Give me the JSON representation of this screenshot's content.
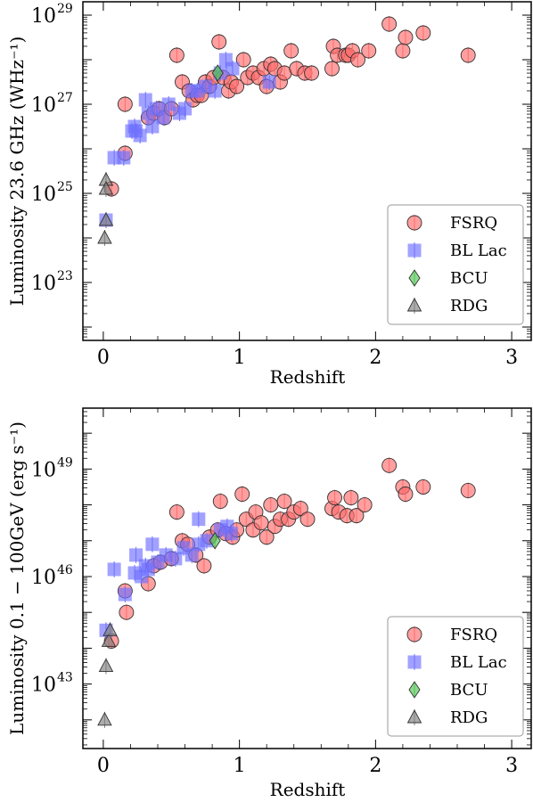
{
  "figure": {
    "legend_labels": [
      "FSRQ",
      "BL Lac",
      "BCU",
      "RDG"
    ],
    "colors": {
      "FSRQ": "#ff6b6b",
      "BL Lac": "#6f70ff",
      "BCU": "#52c452",
      "RDG": "#7f7f7f"
    }
  },
  "chart_data": [
    {
      "type": "scatter",
      "xlabel": "Redshift",
      "ylabel": "Luminosity 23.6 GHz (WHz⁻¹)",
      "xlim": [
        -0.15,
        3.15
      ],
      "ylim_log10": [
        21.7,
        29.3
      ],
      "x_ticks": [
        {
          "value": 0,
          "label": "0"
        },
        {
          "value": 1,
          "label": "1"
        },
        {
          "value": 2,
          "label": "2"
        },
        {
          "value": 3,
          "label": "3"
        }
      ],
      "y_ticks": [
        {
          "exp": 23,
          "label": "10",
          "sup": "23"
        },
        {
          "exp": 25,
          "label": "10",
          "sup": "25"
        },
        {
          "exp": 27,
          "label": "10",
          "sup": "27"
        },
        {
          "exp": 29,
          "label": "10",
          "sup": "29"
        }
      ],
      "legend_position": "lower-right",
      "scale_y": "log",
      "series": [
        {
          "name": "FSRQ",
          "marker": "circle",
          "points": [
            [
              0.06,
              25.1
            ],
            [
              0.16,
              27.0
            ],
            [
              0.16,
              25.9
            ],
            [
              0.33,
              26.7
            ],
            [
              0.37,
              26.8
            ],
            [
              0.41,
              26.9
            ],
            [
              0.45,
              26.7
            ],
            [
              0.5,
              26.9
            ],
            [
              0.54,
              28.1
            ],
            [
              0.58,
              27.5
            ],
            [
              0.63,
              27.3
            ],
            [
              0.66,
              27.1
            ],
            [
              0.69,
              27.2
            ],
            [
              0.72,
              27.2
            ],
            [
              0.75,
              27.5
            ],
            [
              0.78,
              27.4
            ],
            [
              0.81,
              27.6
            ],
            [
              0.85,
              28.4
            ],
            [
              0.88,
              27.6
            ],
            [
              0.92,
              27.3
            ],
            [
              0.94,
              27.5
            ],
            [
              0.98,
              27.4
            ],
            [
              1.03,
              28.0
            ],
            [
              1.06,
              27.6
            ],
            [
              1.1,
              27.7
            ],
            [
              1.14,
              27.6
            ],
            [
              1.18,
              27.8
            ],
            [
              1.2,
              27.4
            ],
            [
              1.23,
              27.9
            ],
            [
              1.26,
              27.8
            ],
            [
              1.3,
              27.5
            ],
            [
              1.33,
              27.7
            ],
            [
              1.38,
              28.2
            ],
            [
              1.42,
              27.8
            ],
            [
              1.48,
              27.7
            ],
            [
              1.53,
              27.7
            ],
            [
              1.68,
              27.8
            ],
            [
              1.69,
              28.3
            ],
            [
              1.72,
              28.1
            ],
            [
              1.78,
              28.1
            ],
            [
              1.8,
              28.1
            ],
            [
              1.83,
              28.2
            ],
            [
              1.87,
              28.0
            ],
            [
              1.95,
              28.2
            ],
            [
              2.1,
              28.8
            ],
            [
              2.2,
              28.2
            ],
            [
              2.22,
              28.5
            ],
            [
              2.35,
              28.6
            ],
            [
              2.68,
              28.1
            ]
          ]
        },
        {
          "name": "BL Lac",
          "marker": "square",
          "points": [
            [
              0.02,
              24.4
            ],
            [
              0.08,
              25.8
            ],
            [
              0.15,
              25.8
            ],
            [
              0.21,
              26.4
            ],
            [
              0.23,
              26.5
            ],
            [
              0.24,
              26.4
            ],
            [
              0.27,
              26.3
            ],
            [
              0.31,
              27.1
            ],
            [
              0.33,
              26.8
            ],
            [
              0.36,
              26.5
            ],
            [
              0.39,
              26.9
            ],
            [
              0.44,
              26.7
            ],
            [
              0.48,
              27.0
            ],
            [
              0.56,
              26.8
            ],
            [
              0.6,
              26.9
            ],
            [
              0.65,
              27.3
            ],
            [
              0.69,
              27.3
            ],
            [
              0.75,
              27.4
            ],
            [
              0.82,
              27.3
            ],
            [
              0.86,
              27.7
            ],
            [
              0.9,
              28.0
            ],
            [
              0.95,
              27.8
            ],
            [
              1.22,
              27.5
            ]
          ]
        },
        {
          "name": "BCU",
          "marker": "diamond",
          "points": [
            [
              0.84,
              27.7
            ]
          ]
        },
        {
          "name": "RDG",
          "marker": "triangle",
          "points": [
            [
              0.01,
              24.0
            ],
            [
              0.02,
              24.4
            ],
            [
              0.02,
              25.3
            ],
            [
              0.02,
              25.1
            ]
          ]
        }
      ]
    },
    {
      "type": "scatter",
      "xlabel": "Redshift",
      "ylabel": "Luminosity 0.1 − 100GeV (erg s⁻¹)",
      "xlim": [
        -0.15,
        3.15
      ],
      "ylim_log10": [
        41.2,
        50.7
      ],
      "x_ticks": [
        {
          "value": 0,
          "label": "0"
        },
        {
          "value": 1,
          "label": "1"
        },
        {
          "value": 2,
          "label": "2"
        },
        {
          "value": 3,
          "label": "3"
        }
      ],
      "y_ticks": [
        {
          "exp": 43,
          "label": "10",
          "sup": "43"
        },
        {
          "exp": 46,
          "label": "10",
          "sup": "46"
        },
        {
          "exp": 49,
          "label": "10",
          "sup": "49"
        }
      ],
      "legend_position": "lower-right",
      "scale_y": "log",
      "series": [
        {
          "name": "FSRQ",
          "marker": "circle",
          "points": [
            [
              0.06,
              44.2
            ],
            [
              0.16,
              45.6
            ],
            [
              0.17,
              45.0
            ],
            [
              0.33,
              45.8
            ],
            [
              0.37,
              46.3
            ],
            [
              0.42,
              46.4
            ],
            [
              0.5,
              46.5
            ],
            [
              0.54,
              47.8
            ],
            [
              0.58,
              47.0
            ],
            [
              0.62,
              46.9
            ],
            [
              0.68,
              46.6
            ],
            [
              0.74,
              46.3
            ],
            [
              0.78,
              47.1
            ],
            [
              0.84,
              47.3
            ],
            [
              0.86,
              48.1
            ],
            [
              0.9,
              47.2
            ],
            [
              0.95,
              47.1
            ],
            [
              0.98,
              47.3
            ],
            [
              1.02,
              48.3
            ],
            [
              1.05,
              47.6
            ],
            [
              1.1,
              47.3
            ],
            [
              1.12,
              47.8
            ],
            [
              1.16,
              47.5
            ],
            [
              1.2,
              47.1
            ],
            [
              1.23,
              48.0
            ],
            [
              1.26,
              47.4
            ],
            [
              1.3,
              47.6
            ],
            [
              1.33,
              48.1
            ],
            [
              1.36,
              47.6
            ],
            [
              1.4,
              47.8
            ],
            [
              1.45,
              47.9
            ],
            [
              1.5,
              47.6
            ],
            [
              1.68,
              47.9
            ],
            [
              1.7,
              48.2
            ],
            [
              1.73,
              47.8
            ],
            [
              1.79,
              47.7
            ],
            [
              1.82,
              48.2
            ],
            [
              1.86,
              47.7
            ],
            [
              1.92,
              48.0
            ],
            [
              2.1,
              49.1
            ],
            [
              2.2,
              48.5
            ],
            [
              2.22,
              48.3
            ],
            [
              2.35,
              48.5
            ],
            [
              2.68,
              48.4
            ]
          ]
        },
        {
          "name": "BL Lac",
          "marker": "square",
          "points": [
            [
              0.02,
              44.5
            ],
            [
              0.08,
              46.2
            ],
            [
              0.16,
              45.5
            ],
            [
              0.23,
              46.1
            ],
            [
              0.24,
              46.6
            ],
            [
              0.28,
              46.0
            ],
            [
              0.31,
              46.3
            ],
            [
              0.33,
              46.2
            ],
            [
              0.36,
              46.9
            ],
            [
              0.4,
              46.4
            ],
            [
              0.46,
              46.6
            ],
            [
              0.53,
              46.5
            ],
            [
              0.59,
              46.8
            ],
            [
              0.65,
              46.6
            ],
            [
              0.7,
              46.9
            ],
            [
              0.76,
              47.0
            ],
            [
              0.86,
              47.3
            ],
            [
              0.91,
              47.4
            ],
            [
              0.94,
              47.2
            ],
            [
              0.7,
              47.6
            ]
          ]
        },
        {
          "name": "BCU",
          "marker": "diamond",
          "points": [
            [
              0.82,
              47.0
            ]
          ]
        },
        {
          "name": "RDG",
          "marker": "triangle",
          "points": [
            [
              0.01,
              42.0
            ],
            [
              0.02,
              43.5
            ],
            [
              0.04,
              44.2
            ],
            [
              0.05,
              44.5
            ]
          ]
        }
      ]
    }
  ]
}
